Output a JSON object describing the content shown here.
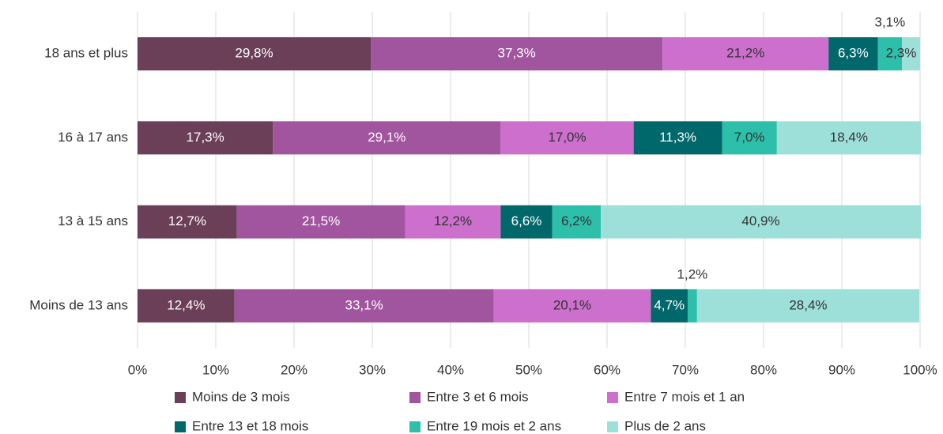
{
  "chart_data": {
    "type": "stacked-barh",
    "categories": [
      "18 ans et plus",
      "16 à 17 ans",
      "13 à 15 ans",
      "Moins de 13 ans"
    ],
    "series": [
      {
        "name": "Moins de 3 mois",
        "color": "#6b3f58",
        "values": [
          29.8,
          17.3,
          12.7,
          12.4
        ],
        "value_labels": [
          "29,8%",
          "17,3%",
          "12,7%",
          "12,4%"
        ]
      },
      {
        "name": "Entre 3 et 6 mois",
        "color": "#a1559f",
        "values": [
          37.3,
          29.1,
          21.5,
          33.1
        ],
        "value_labels": [
          "37,3%",
          "29,1%",
          "21,5%",
          "33,1%"
        ]
      },
      {
        "name": "Entre 7 mois et 1 an",
        "color": "#cd6fcc",
        "values": [
          21.2,
          17.0,
          12.2,
          20.1
        ],
        "value_labels": [
          "21,2%",
          "17,0%",
          "12,2%",
          "20,1%"
        ]
      },
      {
        "name": "Entre 13 et 18 mois",
        "color": "#00686b",
        "values": [
          6.3,
          11.3,
          6.6,
          4.7
        ],
        "value_labels": [
          "6,3%",
          "11,3%",
          "6,6%",
          "4,7%"
        ]
      },
      {
        "name": "Entre 19 mois et 2 ans",
        "color": "#2ebfab",
        "values": [
          3.1,
          7.0,
          6.2,
          1.2
        ],
        "value_labels": [
          "3,1%",
          "7,0%",
          "6,2%",
          "1,2%"
        ]
      },
      {
        "name": "Plus de 2 ans",
        "color": "#9de0da",
        "values": [
          2.3,
          18.4,
          40.9,
          28.4
        ],
        "value_labels": [
          "2,3%",
          "18,4%",
          "40,9%",
          "28,4%"
        ]
      }
    ],
    "xlim": [
      0,
      100
    ],
    "xticks": [
      {
        "value": 0,
        "label": "0%"
      },
      {
        "value": 10,
        "label": "10%"
      },
      {
        "value": 20,
        "label": "20%"
      },
      {
        "value": 30,
        "label": "30%"
      },
      {
        "value": 40,
        "label": "40%"
      },
      {
        "value": 50,
        "label": "50%"
      },
      {
        "value": 60,
        "label": "60%"
      },
      {
        "value": 70,
        "label": "70%"
      },
      {
        "value": 80,
        "label": "80%"
      },
      {
        "value": 90,
        "label": "90%"
      },
      {
        "value": 100,
        "label": "100%"
      }
    ],
    "grid": true
  }
}
